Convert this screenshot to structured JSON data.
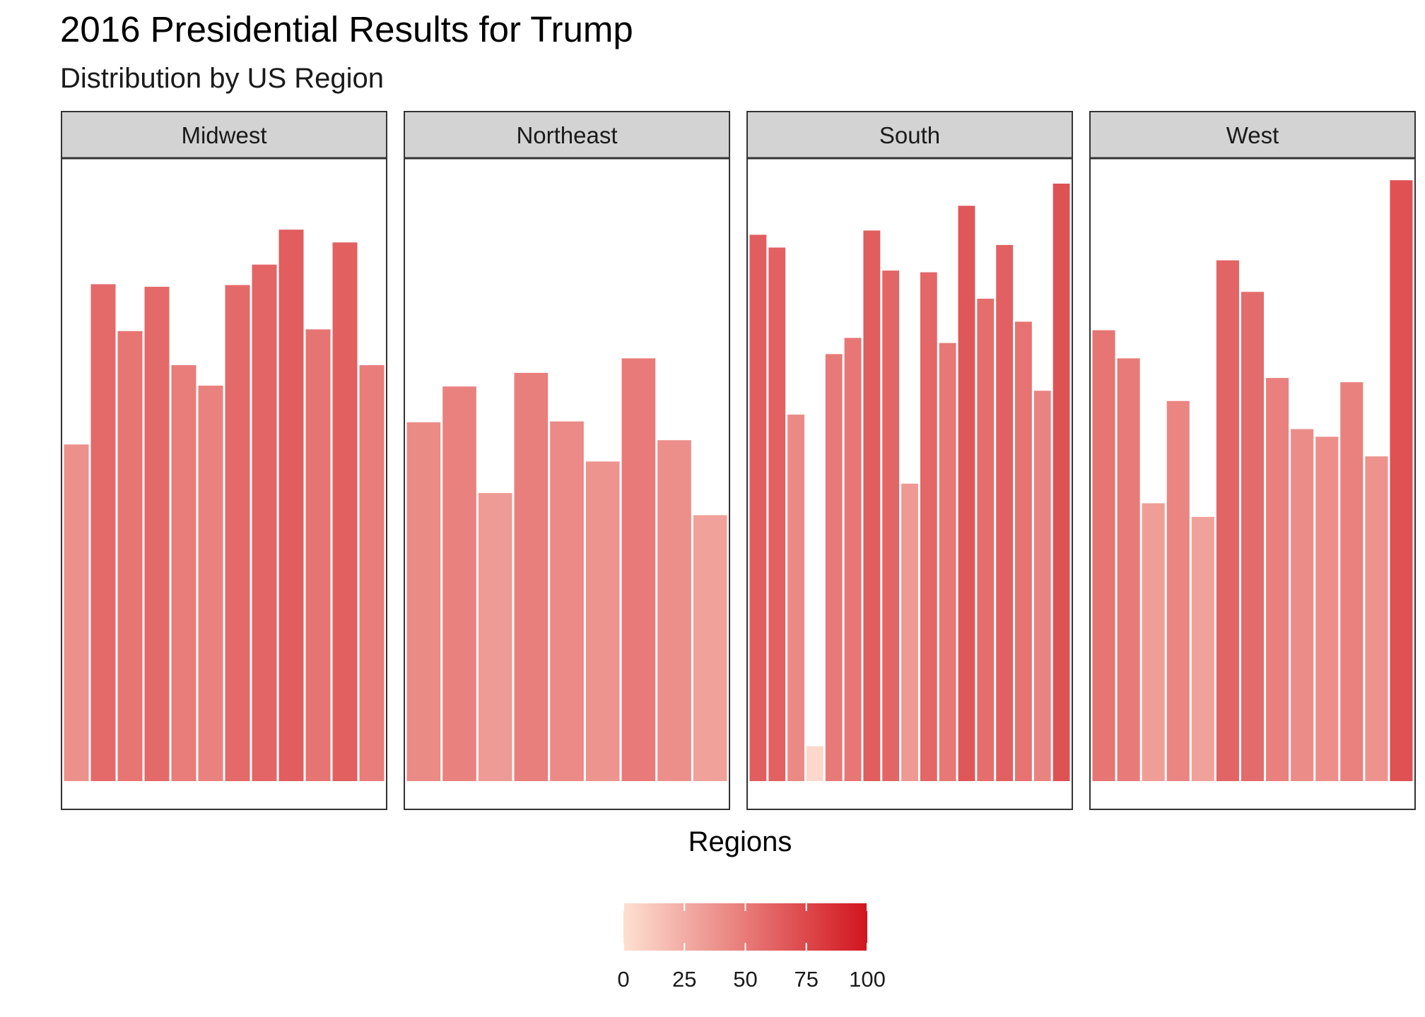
{
  "chart_data": {
    "type": "bar",
    "title": "2016 Presidential Results for Trump",
    "subtitle": "Distribution by US Region",
    "xlabel": "Regions",
    "ylabel": "",
    "ylim": [
      0,
      72
    ],
    "facets": [
      {
        "name": "Midwest",
        "values": [
          39.5,
          58.3,
          52.8,
          58.0,
          48.8,
          46.4,
          58.2,
          60.6,
          64.7,
          53.0,
          63.2,
          48.8
        ]
      },
      {
        "name": "Northeast",
        "values": [
          42.1,
          46.3,
          33.8,
          47.9,
          42.2,
          37.5,
          49.6,
          40.0,
          31.2
        ]
      },
      {
        "name": "South",
        "values": [
          64.1,
          62.6,
          43.0,
          4.1,
          50.1,
          52.0,
          64.6,
          59.9,
          34.9,
          59.7,
          51.4,
          67.5,
          56.6,
          62.9,
          53.9,
          45.8,
          70.1
        ]
      },
      {
        "name": "West",
        "values": [
          52.9,
          49.6,
          32.6,
          44.6,
          31.0,
          61.1,
          57.4,
          47.3,
          41.3,
          40.4,
          46.8,
          38.1,
          70.5
        ]
      }
    ],
    "legend": {
      "ticks": [
        "0",
        "25",
        "50",
        "75",
        "100"
      ],
      "min": 0,
      "max": 100,
      "placement": "bottom",
      "color_low": "#fde0d2",
      "color_high": "#d2151e"
    }
  }
}
